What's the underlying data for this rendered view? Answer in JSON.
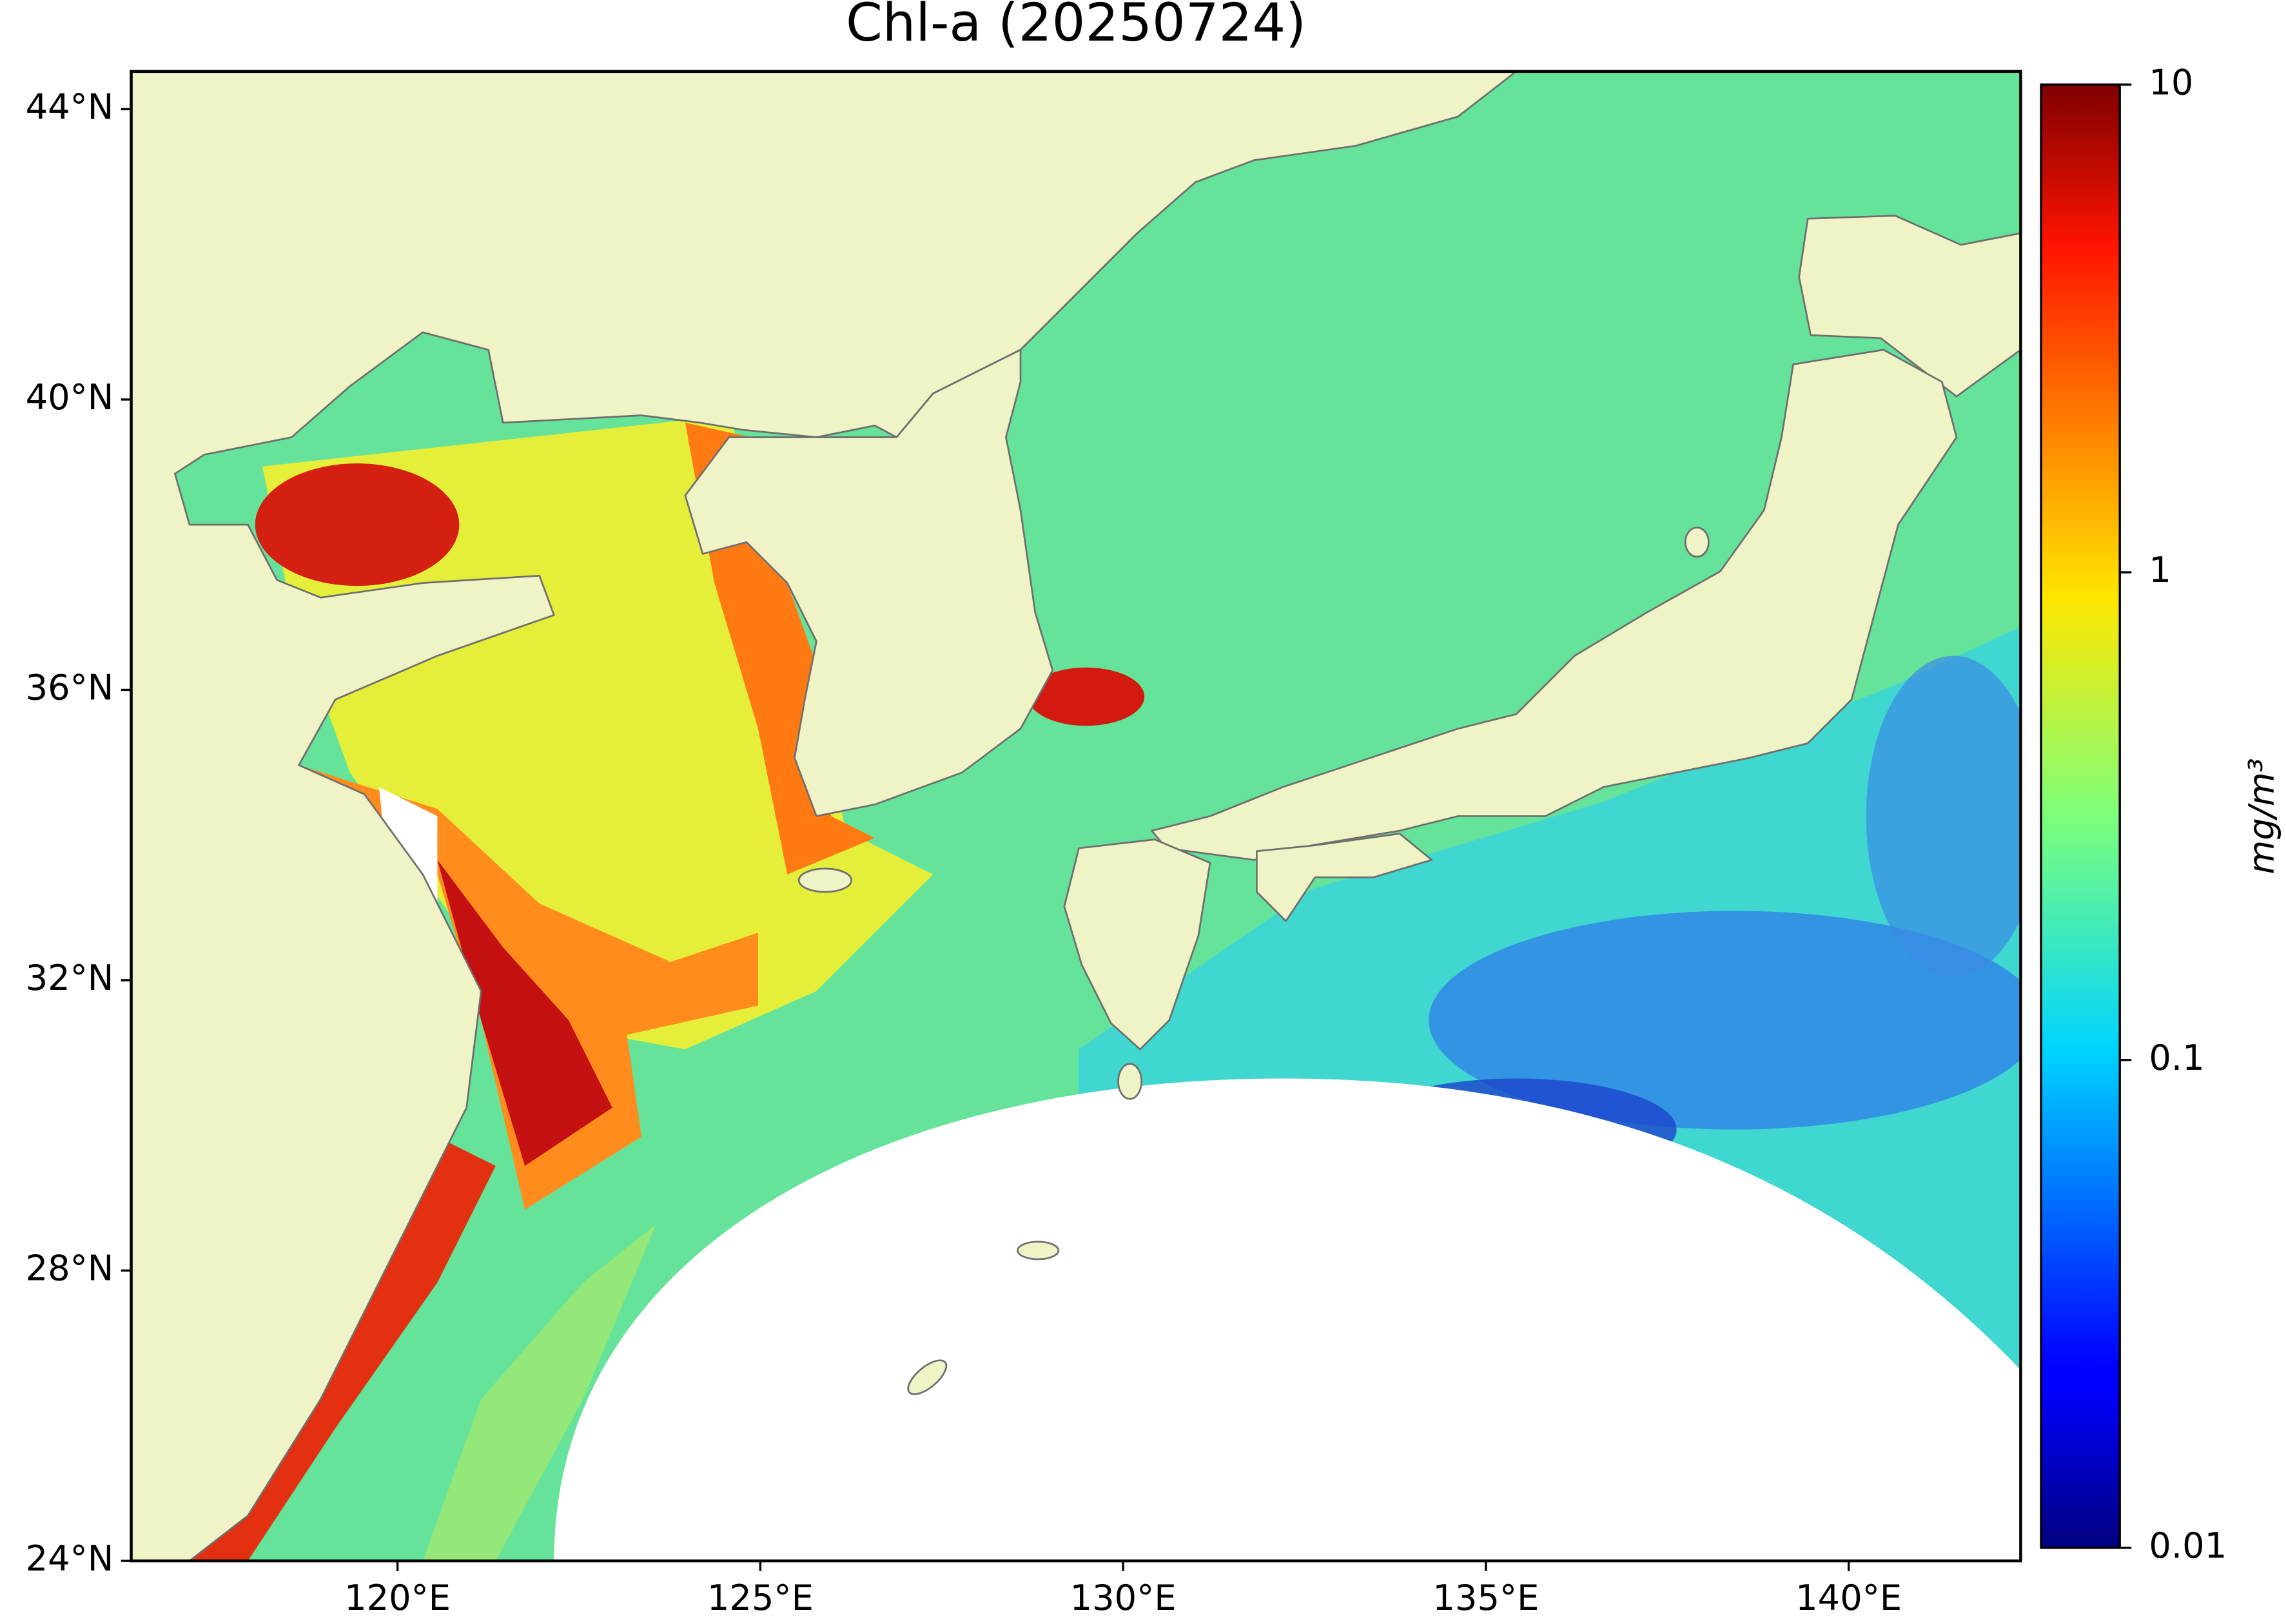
{
  "map": {
    "title": "Chl-a (20250724)",
    "xlim": [
      116.33,
      142.37
    ],
    "ylim": [
      24,
      44.52
    ],
    "xticks": [
      {
        "value": 120,
        "label": "120°E"
      },
      {
        "value": 125,
        "label": "125°E"
      },
      {
        "value": 130,
        "label": "130°E"
      },
      {
        "value": 135,
        "label": "135°E"
      },
      {
        "value": 140,
        "label": "140°E"
      }
    ],
    "yticks": [
      {
        "value": 24,
        "label": "24°N"
      },
      {
        "value": 28,
        "label": "28°N"
      },
      {
        "value": 32,
        "label": "32°N"
      },
      {
        "value": 36,
        "label": "36°N"
      },
      {
        "value": 40,
        "label": "40°N"
      },
      {
        "value": 44,
        "label": "44°N"
      }
    ]
  },
  "colorbar": {
    "label": "mg/m³",
    "scale": "log",
    "lim": [
      0.01,
      10
    ],
    "ticks": [
      0.01,
      0.1,
      1,
      10
    ]
  }
}
